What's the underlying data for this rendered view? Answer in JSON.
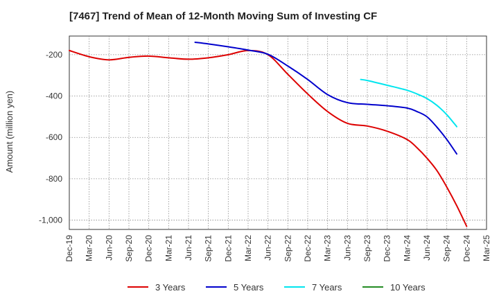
{
  "chart_data": {
    "type": "line",
    "title": "[7467]  Trend of Mean of 12-Month Moving Sum of Investing CF",
    "xlabel": "",
    "ylabel": "Amount (million yen)",
    "categories": [
      "Dec-19",
      "Mar-20",
      "Jun-20",
      "Sep-20",
      "Dec-20",
      "Mar-21",
      "Jun-21",
      "Sep-21",
      "Dec-21",
      "Mar-22",
      "Jun-22",
      "Sep-22",
      "Dec-22",
      "Mar-23",
      "Jun-23",
      "Sep-23",
      "Dec-23",
      "Mar-24",
      "Jun-24",
      "Sep-24",
      "Dec-24",
      "Mar-25"
    ],
    "y_ticks": [
      -200,
      -400,
      -600,
      -800,
      -1000
    ],
    "y_tick_labels": [
      "-200",
      "-400",
      "-600",
      "-800",
      "-1,000"
    ],
    "ylim": [
      -1045,
      -110
    ],
    "grid": true,
    "legend_position": "bottom",
    "series": [
      {
        "name": "3 Years",
        "color": "#dd0000",
        "points": [
          [
            0,
            -180
          ],
          [
            1,
            -210
          ],
          [
            2,
            -225
          ],
          [
            3,
            -213
          ],
          [
            4,
            -207
          ],
          [
            5,
            -215
          ],
          [
            6,
            -222
          ],
          [
            7,
            -215
          ],
          [
            8,
            -200
          ],
          [
            9,
            -180
          ],
          [
            10,
            -200
          ],
          [
            11,
            -295
          ],
          [
            12,
            -390
          ],
          [
            13,
            -475
          ],
          [
            14,
            -532
          ],
          [
            15,
            -545
          ],
          [
            16,
            -570
          ],
          [
            17,
            -610
          ],
          [
            17.5,
            -650
          ],
          [
            18,
            -700
          ],
          [
            18.5,
            -760
          ],
          [
            19,
            -840
          ],
          [
            19.5,
            -930
          ],
          [
            20,
            -1030
          ]
        ]
      },
      {
        "name": "5 Years",
        "color": "#0000cc",
        "points": [
          [
            6.33,
            -140
          ],
          [
            7,
            -148
          ],
          [
            8,
            -162
          ],
          [
            9,
            -178
          ],
          [
            10,
            -198
          ],
          [
            11,
            -255
          ],
          [
            12,
            -320
          ],
          [
            13,
            -393
          ],
          [
            14,
            -432
          ],
          [
            15,
            -440
          ],
          [
            16,
            -447
          ],
          [
            17,
            -458
          ],
          [
            17.5,
            -475
          ],
          [
            18,
            -500
          ],
          [
            18.5,
            -550
          ],
          [
            19,
            -610
          ],
          [
            19.5,
            -680
          ]
        ]
      },
      {
        "name": "7 Years",
        "color": "#00e5ee",
        "points": [
          [
            14.67,
            -320
          ],
          [
            15,
            -325
          ],
          [
            16,
            -348
          ],
          [
            17,
            -372
          ],
          [
            17.5,
            -390
          ],
          [
            18,
            -412
          ],
          [
            18.5,
            -445
          ],
          [
            19,
            -490
          ],
          [
            19.5,
            -548
          ]
        ]
      },
      {
        "name": "10 Years",
        "color": "#228b22",
        "points": []
      }
    ]
  }
}
